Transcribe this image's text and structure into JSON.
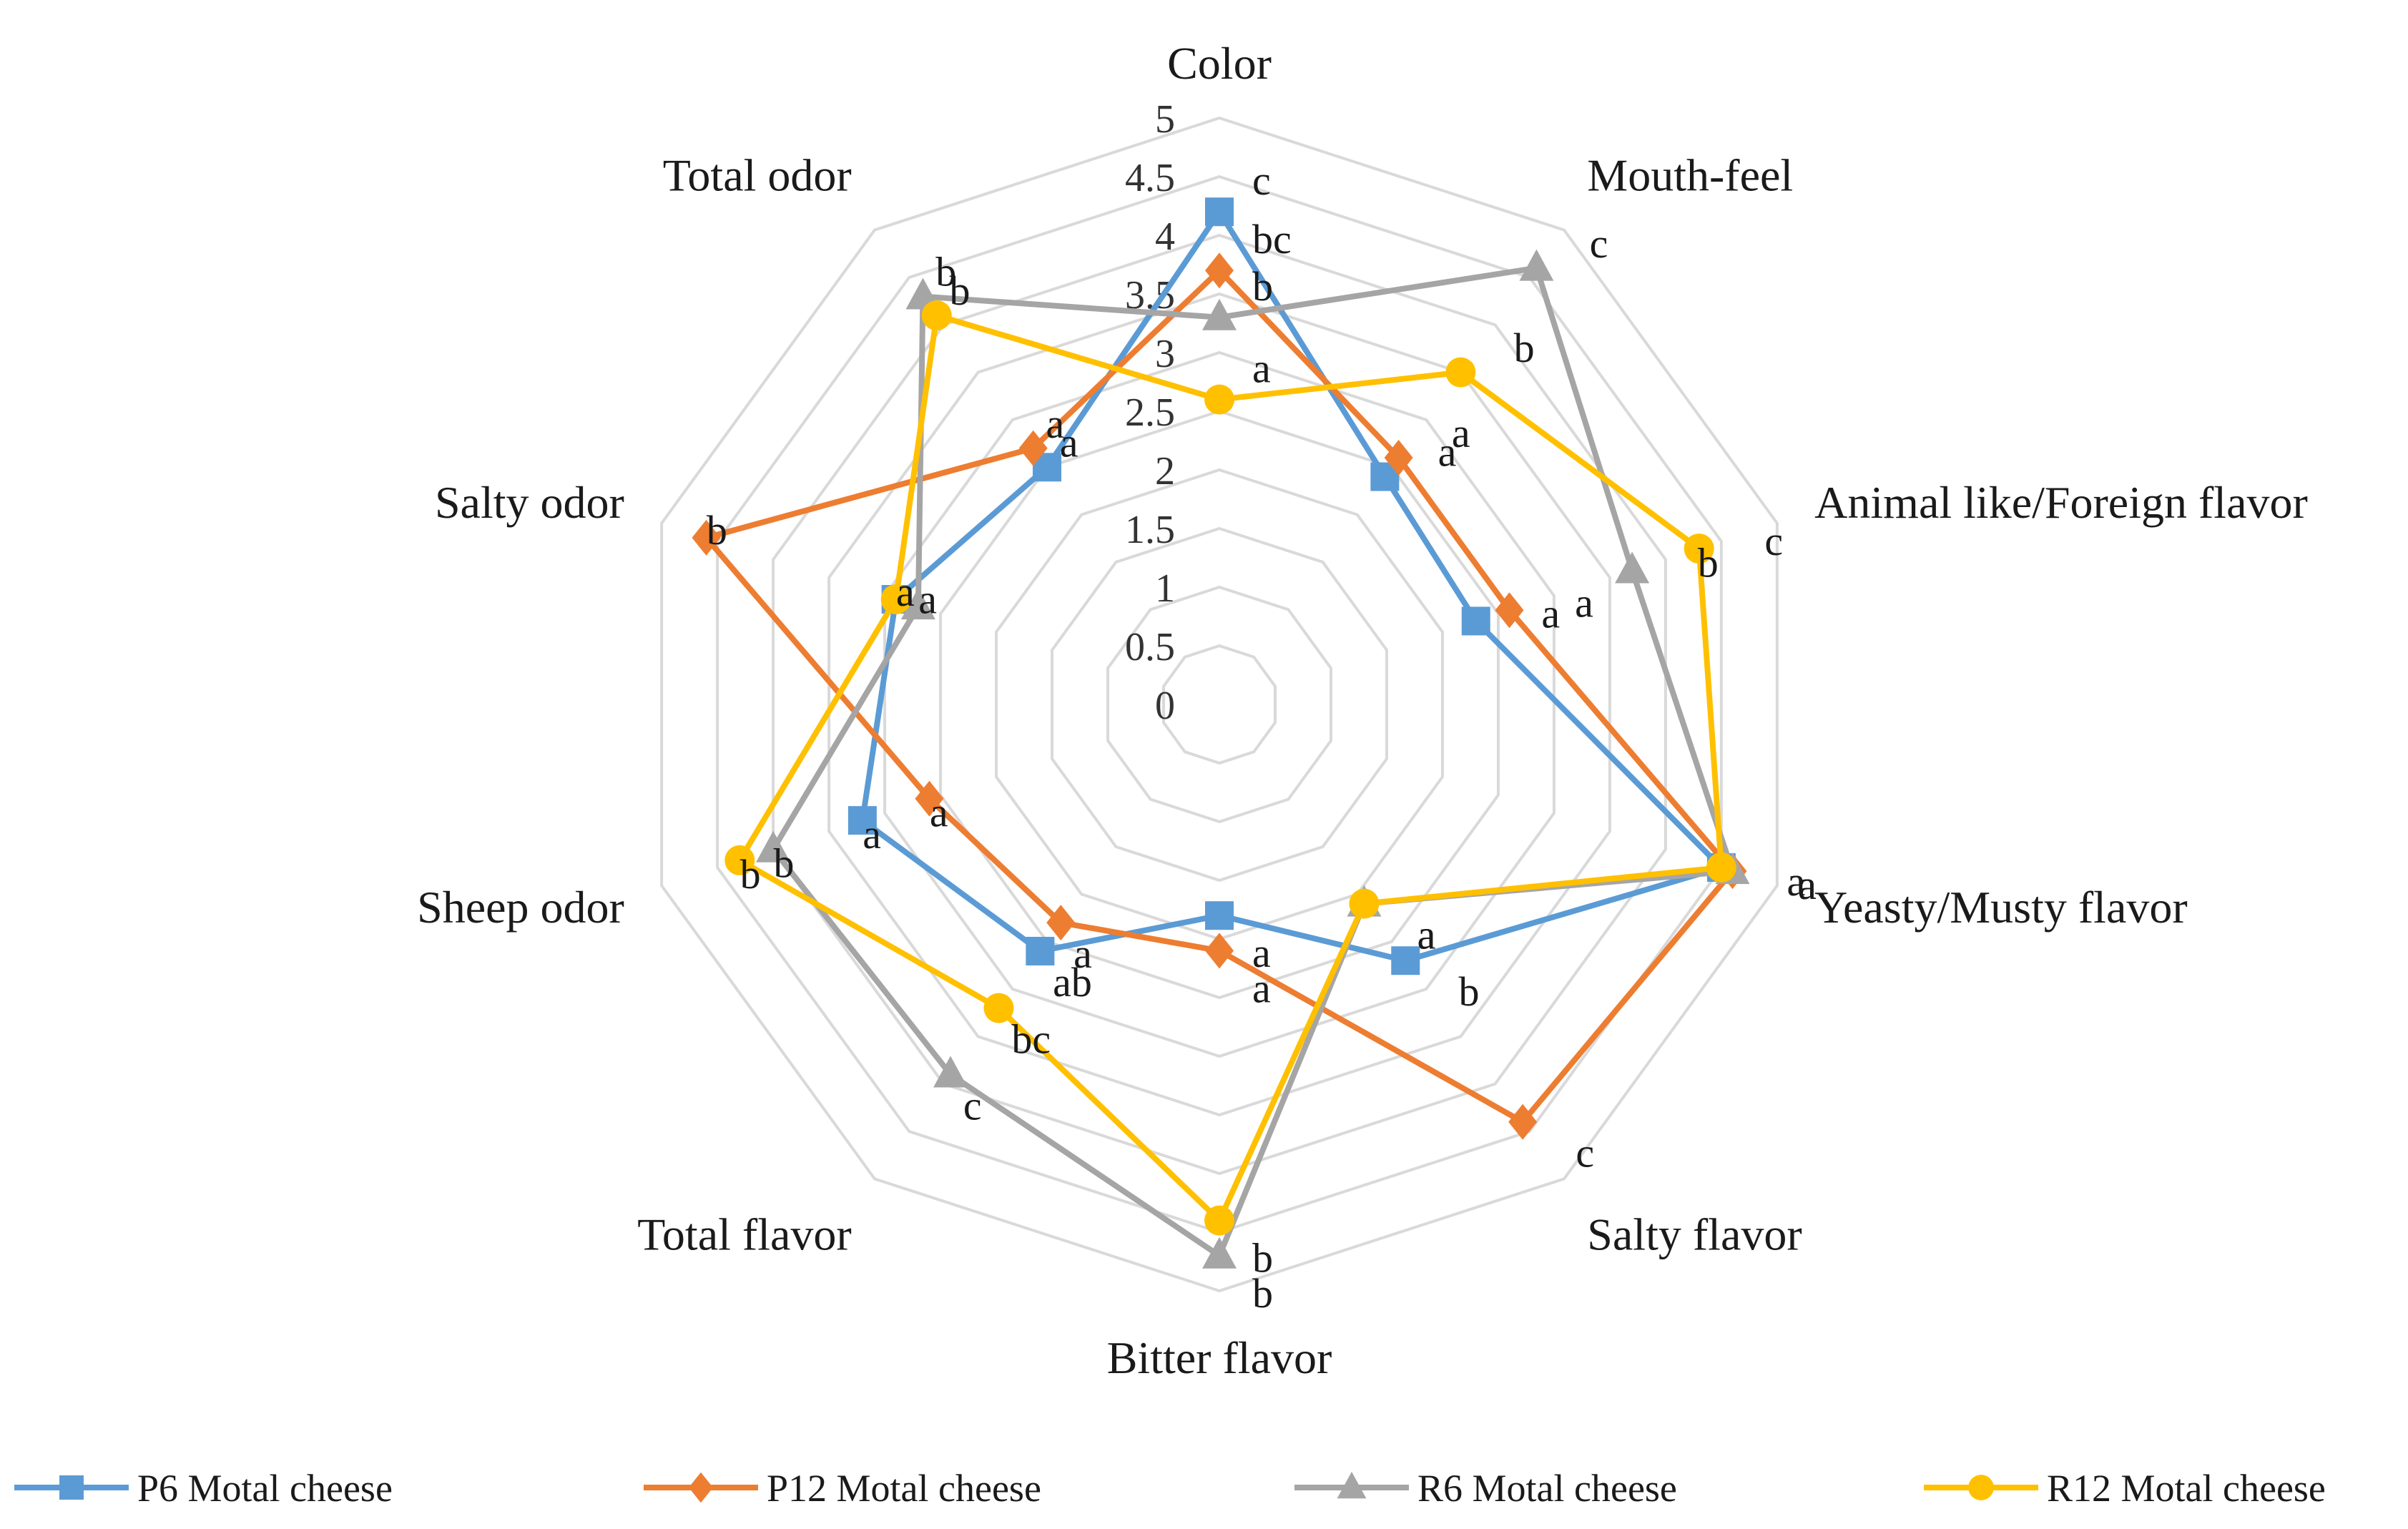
{
  "chart_data": {
    "type": "radar",
    "title": "",
    "categories": [
      "Color",
      "Mouth-feel",
      "Animal like/Foreign flavor",
      "Yeasty/Musty flavor",
      "Salty flavor",
      "Bitter flavor",
      "Total flavor",
      "Sheep odor",
      "Salty odor",
      "Total odor"
    ],
    "rlim": [
      0,
      5
    ],
    "ticks": [
      "0",
      "0.5",
      "1",
      "1.5",
      "2",
      "2.5",
      "3",
      "3.5",
      "4",
      "4.5",
      "5"
    ],
    "grid": true,
    "legend_position": "bottom",
    "series": [
      {
        "name": "P6 Motal cheese",
        "color": "#5B9BD5",
        "marker": "square",
        "values": [
          4.2,
          2.4,
          2.3,
          4.5,
          2.7,
          1.8,
          2.6,
          3.2,
          2.9,
          2.5
        ],
        "labels": [
          "c",
          "a",
          "a",
          "a",
          "b",
          "a",
          "ab",
          "a",
          "a",
          "a"
        ]
      },
      {
        "name": "P12 Motal cheese",
        "color": "#ED7D31",
        "marker": "diamond",
        "values": [
          3.7,
          2.6,
          2.6,
          4.6,
          4.4,
          2.1,
          2.3,
          2.6,
          4.6,
          2.7
        ],
        "labels": [
          "bc",
          "a",
          "a",
          "a",
          "c",
          "a",
          "a",
          "a",
          "b",
          "a"
        ]
      },
      {
        "name": "R6 Motal cheese",
        "color": "#A5A5A5",
        "marker": "triangle",
        "values": [
          3.3,
          4.6,
          3.7,
          4.6,
          2.1,
          4.7,
          3.9,
          4.0,
          2.7,
          4.3
        ],
        "labels": [
          "b",
          "c",
          "b",
          "a",
          "a",
          "b",
          "c",
          "b",
          "a",
          "b"
        ]
      },
      {
        "name": "R12 Motal cheese",
        "color": "#FFC000",
        "marker": "circle",
        "values": [
          2.6,
          3.5,
          4.3,
          4.5,
          2.1,
          4.4,
          3.2,
          4.3,
          2.9,
          4.1
        ],
        "labels": [
          "a",
          "b",
          "c",
          "a",
          "a",
          "b",
          "bc",
          "b",
          "a",
          "b"
        ]
      }
    ]
  }
}
